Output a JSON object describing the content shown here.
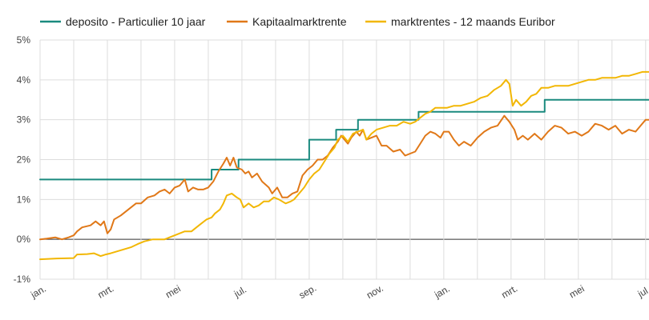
{
  "chart_data": {
    "type": "line",
    "title": "",
    "xlabel": "",
    "ylabel": "",
    "x_unit": "month",
    "x_range": [
      0,
      18.1
    ],
    "ylim": [
      -1,
      5
    ],
    "y_ticks": [
      -1,
      0,
      1,
      2,
      3,
      4,
      5
    ],
    "y_tick_labels": [
      "-1%",
      "0%",
      "1%",
      "2%",
      "3%",
      "4%",
      "5%"
    ],
    "x_ticks": [
      0,
      2,
      4,
      6,
      8,
      10,
      12,
      14,
      16,
      18
    ],
    "x_tick_labels": [
      "jan.",
      "mrt.",
      "mei",
      "jul.",
      "sep.",
      "nov.",
      "jan.",
      "mrt.",
      "mei",
      "jul."
    ],
    "grid": "vertical and horizontal",
    "legend_position": "top",
    "series": [
      {
        "name": "deposito - Particulier 10 jaar",
        "color": "#1a8a7f",
        "step": true,
        "points": [
          [
            0,
            1.5
          ],
          [
            5.1,
            1.5
          ],
          [
            5.1,
            1.75
          ],
          [
            5.9,
            1.75
          ],
          [
            5.9,
            2.0
          ],
          [
            8.0,
            2.0
          ],
          [
            8.0,
            2.5
          ],
          [
            8.8,
            2.5
          ],
          [
            8.8,
            2.75
          ],
          [
            9.45,
            2.75
          ],
          [
            9.45,
            3.0
          ],
          [
            11.25,
            3.0
          ],
          [
            11.25,
            3.2
          ],
          [
            15.0,
            3.2
          ],
          [
            15.0,
            3.5
          ],
          [
            18.1,
            3.5
          ]
        ]
      },
      {
        "name": "Kapitaalmarktrente",
        "color": "#e07818",
        "step": false,
        "points": [
          [
            0,
            0.0
          ],
          [
            0.2,
            0.02
          ],
          [
            0.45,
            0.05
          ],
          [
            0.65,
            0.0
          ],
          [
            0.85,
            0.05
          ],
          [
            1.0,
            0.1
          ],
          [
            1.1,
            0.2
          ],
          [
            1.25,
            0.3
          ],
          [
            1.5,
            0.35
          ],
          [
            1.65,
            0.45
          ],
          [
            1.8,
            0.35
          ],
          [
            1.9,
            0.45
          ],
          [
            2.0,
            0.15
          ],
          [
            2.1,
            0.25
          ],
          [
            2.2,
            0.5
          ],
          [
            2.4,
            0.6
          ],
          [
            2.55,
            0.7
          ],
          [
            2.7,
            0.8
          ],
          [
            2.85,
            0.9
          ],
          [
            3.0,
            0.9
          ],
          [
            3.2,
            1.05
          ],
          [
            3.4,
            1.1
          ],
          [
            3.55,
            1.2
          ],
          [
            3.7,
            1.25
          ],
          [
            3.85,
            1.15
          ],
          [
            4.0,
            1.3
          ],
          [
            4.15,
            1.35
          ],
          [
            4.3,
            1.5
          ],
          [
            4.4,
            1.2
          ],
          [
            4.55,
            1.3
          ],
          [
            4.7,
            1.25
          ],
          [
            4.85,
            1.25
          ],
          [
            5.0,
            1.3
          ],
          [
            5.15,
            1.45
          ],
          [
            5.3,
            1.7
          ],
          [
            5.45,
            1.9
          ],
          [
            5.55,
            2.05
          ],
          [
            5.65,
            1.85
          ],
          [
            5.75,
            2.05
          ],
          [
            5.85,
            1.8
          ],
          [
            6.0,
            1.75
          ],
          [
            6.1,
            1.65
          ],
          [
            6.2,
            1.7
          ],
          [
            6.3,
            1.55
          ],
          [
            6.45,
            1.65
          ],
          [
            6.6,
            1.45
          ],
          [
            6.8,
            1.3
          ],
          [
            6.9,
            1.15
          ],
          [
            7.05,
            1.3
          ],
          [
            7.2,
            1.05
          ],
          [
            7.35,
            1.05
          ],
          [
            7.5,
            1.15
          ],
          [
            7.65,
            1.2
          ],
          [
            7.8,
            1.6
          ],
          [
            7.95,
            1.75
          ],
          [
            8.1,
            1.85
          ],
          [
            8.25,
            2.0
          ],
          [
            8.4,
            2.0
          ],
          [
            8.55,
            2.1
          ],
          [
            8.7,
            2.3
          ],
          [
            8.85,
            2.45
          ],
          [
            8.95,
            2.6
          ],
          [
            9.05,
            2.5
          ],
          [
            9.15,
            2.4
          ],
          [
            9.25,
            2.55
          ],
          [
            9.4,
            2.7
          ],
          [
            9.5,
            2.6
          ],
          [
            9.6,
            2.75
          ],
          [
            9.7,
            2.5
          ],
          [
            9.85,
            2.55
          ],
          [
            10.0,
            2.6
          ],
          [
            10.15,
            2.35
          ],
          [
            10.3,
            2.35
          ],
          [
            10.5,
            2.2
          ],
          [
            10.7,
            2.25
          ],
          [
            10.85,
            2.1
          ],
          [
            11.0,
            2.15
          ],
          [
            11.15,
            2.2
          ],
          [
            11.3,
            2.4
          ],
          [
            11.45,
            2.6
          ],
          [
            11.6,
            2.7
          ],
          [
            11.75,
            2.65
          ],
          [
            11.9,
            2.55
          ],
          [
            12.0,
            2.7
          ],
          [
            12.15,
            2.7
          ],
          [
            12.3,
            2.5
          ],
          [
            12.45,
            2.35
          ],
          [
            12.6,
            2.45
          ],
          [
            12.8,
            2.35
          ],
          [
            13.0,
            2.55
          ],
          [
            13.2,
            2.7
          ],
          [
            13.4,
            2.8
          ],
          [
            13.6,
            2.85
          ],
          [
            13.8,
            3.1
          ],
          [
            13.95,
            2.95
          ],
          [
            14.1,
            2.75
          ],
          [
            14.2,
            2.5
          ],
          [
            14.35,
            2.6
          ],
          [
            14.5,
            2.5
          ],
          [
            14.7,
            2.65
          ],
          [
            14.9,
            2.5
          ],
          [
            15.1,
            2.7
          ],
          [
            15.3,
            2.85
          ],
          [
            15.5,
            2.8
          ],
          [
            15.7,
            2.65
          ],
          [
            15.9,
            2.7
          ],
          [
            16.1,
            2.6
          ],
          [
            16.3,
            2.7
          ],
          [
            16.5,
            2.9
          ],
          [
            16.7,
            2.85
          ],
          [
            16.9,
            2.75
          ],
          [
            17.1,
            2.85
          ],
          [
            17.3,
            2.65
          ],
          [
            17.5,
            2.75
          ],
          [
            17.7,
            2.7
          ],
          [
            17.85,
            2.85
          ],
          [
            18.0,
            3.0
          ],
          [
            18.1,
            3.0
          ]
        ]
      },
      {
        "name": "marktrentes - 12 maands Euribor",
        "color": "#f2b705",
        "step": false,
        "points": [
          [
            0,
            -0.5
          ],
          [
            0.5,
            -0.48
          ],
          [
            1.0,
            -0.47
          ],
          [
            1.1,
            -0.38
          ],
          [
            1.4,
            -0.37
          ],
          [
            1.6,
            -0.35
          ],
          [
            1.8,
            -0.42
          ],
          [
            1.95,
            -0.38
          ],
          [
            2.1,
            -0.35
          ],
          [
            2.3,
            -0.3
          ],
          [
            2.5,
            -0.25
          ],
          [
            2.7,
            -0.2
          ],
          [
            2.9,
            -0.12
          ],
          [
            3.1,
            -0.05
          ],
          [
            3.35,
            0.0
          ],
          [
            3.7,
            0.0
          ],
          [
            3.85,
            0.05
          ],
          [
            4.0,
            0.1
          ],
          [
            4.15,
            0.15
          ],
          [
            4.3,
            0.2
          ],
          [
            4.5,
            0.2
          ],
          [
            4.65,
            0.3
          ],
          [
            4.8,
            0.4
          ],
          [
            4.95,
            0.5
          ],
          [
            5.1,
            0.55
          ],
          [
            5.2,
            0.65
          ],
          [
            5.35,
            0.75
          ],
          [
            5.45,
            0.9
          ],
          [
            5.55,
            1.1
          ],
          [
            5.7,
            1.15
          ],
          [
            5.85,
            1.05
          ],
          [
            5.95,
            1.0
          ],
          [
            6.05,
            0.8
          ],
          [
            6.2,
            0.9
          ],
          [
            6.35,
            0.8
          ],
          [
            6.5,
            0.85
          ],
          [
            6.65,
            0.95
          ],
          [
            6.8,
            0.95
          ],
          [
            6.95,
            1.05
          ],
          [
            7.1,
            1.0
          ],
          [
            7.3,
            0.9
          ],
          [
            7.45,
            0.95
          ],
          [
            7.55,
            1.0
          ],
          [
            7.7,
            1.15
          ],
          [
            7.85,
            1.3
          ],
          [
            8.0,
            1.5
          ],
          [
            8.15,
            1.65
          ],
          [
            8.3,
            1.75
          ],
          [
            8.45,
            1.95
          ],
          [
            8.6,
            2.15
          ],
          [
            8.75,
            2.3
          ],
          [
            8.85,
            2.5
          ],
          [
            9.0,
            2.6
          ],
          [
            9.15,
            2.45
          ],
          [
            9.3,
            2.65
          ],
          [
            9.45,
            2.7
          ],
          [
            9.6,
            2.75
          ],
          [
            9.7,
            2.5
          ],
          [
            9.85,
            2.65
          ],
          [
            10.0,
            2.75
          ],
          [
            10.2,
            2.8
          ],
          [
            10.4,
            2.85
          ],
          [
            10.6,
            2.85
          ],
          [
            10.8,
            2.95
          ],
          [
            11.0,
            2.9
          ],
          [
            11.15,
            2.95
          ],
          [
            11.3,
            3.05
          ],
          [
            11.45,
            3.15
          ],
          [
            11.6,
            3.2
          ],
          [
            11.75,
            3.3
          ],
          [
            11.9,
            3.3
          ],
          [
            12.1,
            3.3
          ],
          [
            12.3,
            3.35
          ],
          [
            12.5,
            3.35
          ],
          [
            12.7,
            3.4
          ],
          [
            12.9,
            3.45
          ],
          [
            13.1,
            3.55
          ],
          [
            13.3,
            3.6
          ],
          [
            13.5,
            3.75
          ],
          [
            13.7,
            3.85
          ],
          [
            13.85,
            4.0
          ],
          [
            13.95,
            3.9
          ],
          [
            14.05,
            3.35
          ],
          [
            14.15,
            3.5
          ],
          [
            14.3,
            3.35
          ],
          [
            14.45,
            3.45
          ],
          [
            14.6,
            3.6
          ],
          [
            14.75,
            3.65
          ],
          [
            14.9,
            3.8
          ],
          [
            15.1,
            3.8
          ],
          [
            15.3,
            3.85
          ],
          [
            15.5,
            3.85
          ],
          [
            15.7,
            3.85
          ],
          [
            15.9,
            3.9
          ],
          [
            16.1,
            3.95
          ],
          [
            16.3,
            4.0
          ],
          [
            16.5,
            4.0
          ],
          [
            16.7,
            4.05
          ],
          [
            16.9,
            4.05
          ],
          [
            17.1,
            4.05
          ],
          [
            17.3,
            4.1
          ],
          [
            17.5,
            4.1
          ],
          [
            17.7,
            4.15
          ],
          [
            17.9,
            4.2
          ],
          [
            18.1,
            4.2
          ]
        ]
      }
    ]
  }
}
